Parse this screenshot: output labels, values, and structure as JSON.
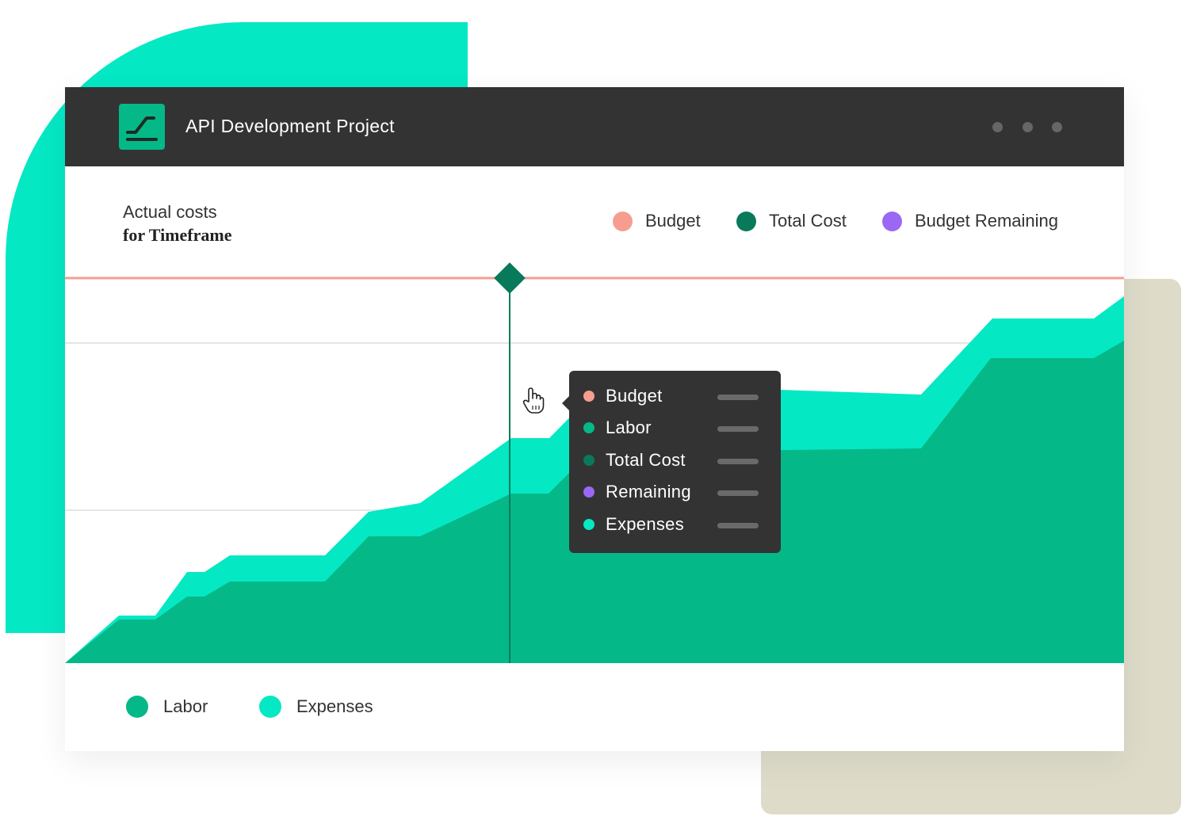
{
  "window": {
    "title": "API Development Project",
    "app_icon": "trend-line-icon",
    "menu_icon": "more-dots-icon"
  },
  "panel": {
    "subtitle_line1": "Actual costs",
    "subtitle_line2": "for Timeframe"
  },
  "legend_top": [
    {
      "label": "Budget",
      "color": "#f59e8f"
    },
    {
      "label": "Total Cost",
      "color": "#087a5b"
    },
    {
      "label": "Budget Remaining",
      "color": "#9a68f5"
    }
  ],
  "legend_bottom": [
    {
      "label": "Labor",
      "color": "#05b888"
    },
    {
      "label": "Expenses",
      "color": "#05e8c4"
    }
  ],
  "tooltip": {
    "items": [
      {
        "label": "Budget",
        "color": "#f59e8f"
      },
      {
        "label": "Labor",
        "color": "#05b888"
      },
      {
        "label": "Total Cost",
        "color": "#087a5b"
      },
      {
        "label": "Remaining",
        "color": "#9a68f5"
      },
      {
        "label": "Expenses",
        "color": "#05e8c4"
      }
    ]
  },
  "colors": {
    "labor": "#05b888",
    "expenses": "#05e8c4",
    "budget": "#f59e8f",
    "total_cost": "#087a5b",
    "topbar": "#333333"
  }
}
